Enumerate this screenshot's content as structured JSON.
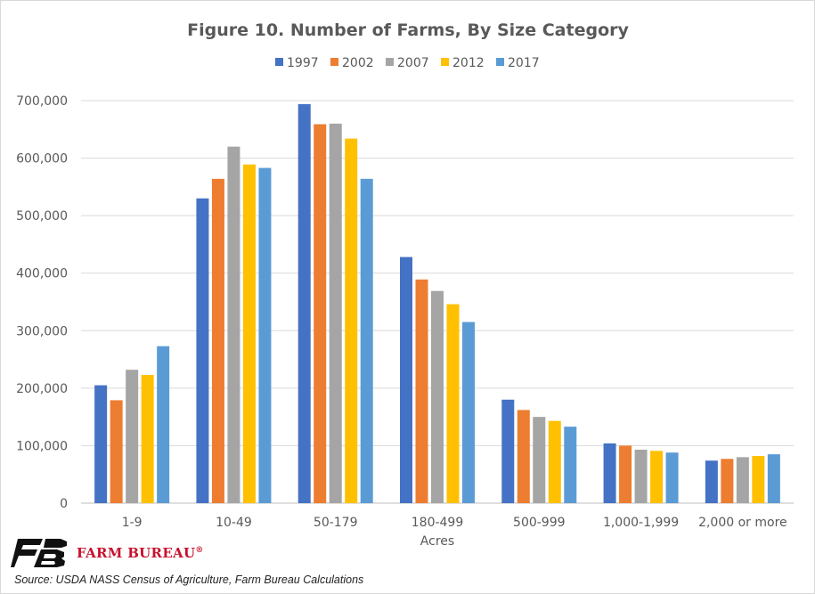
{
  "chart_data": {
    "type": "bar",
    "title": "Figure 10. Number of Farms, By Size Category",
    "xlabel": "Acres",
    "ylabel": "",
    "categories": [
      "1-9",
      "10-49",
      "50-179",
      "180-499",
      "500-999",
      "1,000-1,999",
      "2,000 or more"
    ],
    "ylim": [
      0,
      700000
    ],
    "yticks": [
      "0",
      "100,000",
      "200,000",
      "300,000",
      "400,000",
      "500,000",
      "600,000",
      "700,000"
    ],
    "grid": true,
    "legend_position": "top",
    "series": [
      {
        "name": "1997",
        "color": "#4472c4",
        "values": [
          205000,
          530000,
          694000,
          428000,
          180000,
          104000,
          74000
        ]
      },
      {
        "name": "2002",
        "color": "#ed7d31",
        "values": [
          179000,
          564000,
          659000,
          389000,
          162000,
          100000,
          77000
        ]
      },
      {
        "name": "2007",
        "color": "#a5a5a5",
        "values": [
          232000,
          620000,
          660000,
          369000,
          150000,
          93000,
          80000
        ]
      },
      {
        "name": "2012",
        "color": "#ffc000",
        "values": [
          223000,
          589000,
          634000,
          346000,
          143000,
          91000,
          82000
        ]
      },
      {
        "name": "2017",
        "color": "#5b9bd5",
        "values": [
          273000,
          583000,
          564000,
          315000,
          133000,
          88000,
          85000
        ]
      }
    ]
  },
  "footer": {
    "brand": "FARM BUREAU",
    "registered": "®",
    "source": "Source: USDA NASS Census of Agriculture, Farm Bureau Calculations"
  }
}
